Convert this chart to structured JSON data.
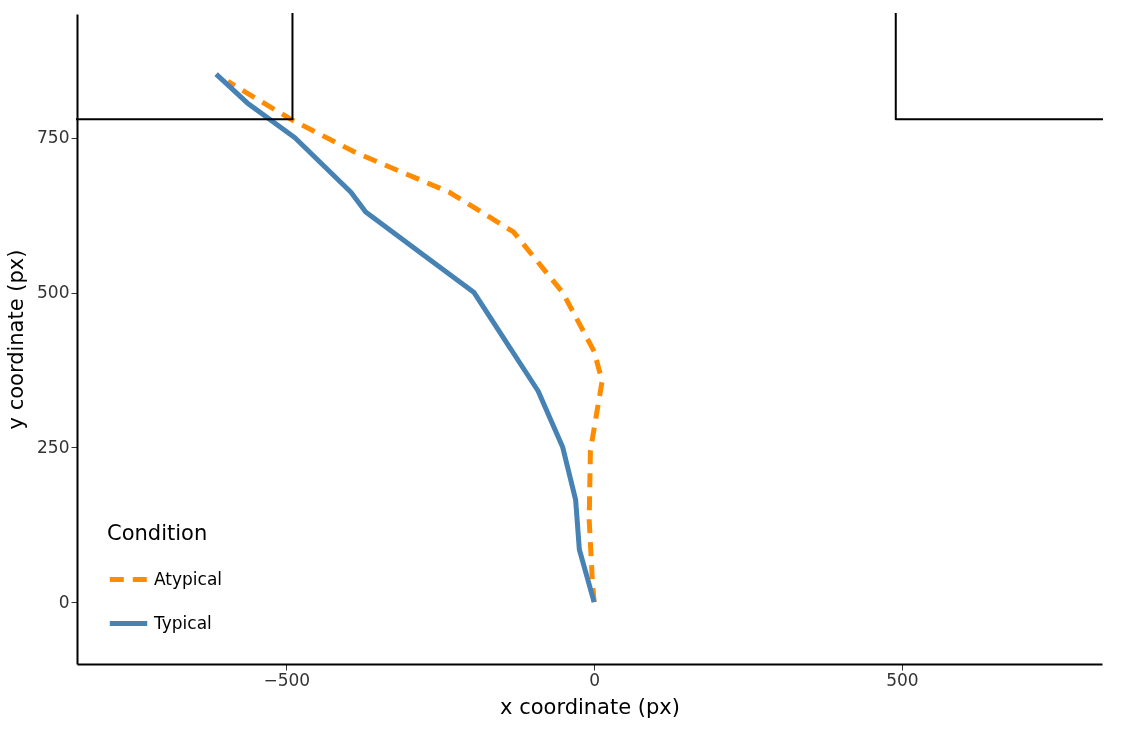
{
  "chart_data": {
    "type": "line",
    "xlabel": "x coordinate (px)",
    "ylabel": "y coordinate (px)",
    "legend_title": "Condition",
    "xlim": [
      -840,
      825
    ],
    "xticks": [
      -500,
      0,
      500
    ],
    "ylim": [
      -100,
      950
    ],
    "yticks": [
      0,
      250,
      500,
      750
    ],
    "grid": false,
    "legend": "bottom left",
    "marker": "none",
    "series": [
      {
        "name": "Atypical",
        "color": "#ff8c00",
        "line_style": "dashed",
        "x": [
          0,
          -3,
          -8,
          -6,
          13,
          0,
          -51,
          -131,
          -235,
          -387,
          -491,
          -595
        ],
        "values": [
          0,
          37,
          133,
          245,
          357,
          405,
          500,
          598,
          662,
          726,
          779,
          841
        ]
      },
      {
        "name": "Typical",
        "color": "#4682b4",
        "line_style": "solid",
        "x": [
          0,
          -24,
          -30,
          -51,
          -91,
          -195,
          -371,
          -395,
          -486,
          -563,
          -614
        ],
        "values": [
          0,
          85,
          165,
          250,
          341,
          500,
          630,
          662,
          750,
          806,
          853
        ]
      },
      {
        "type": "line",
        "color": "#000000",
        "line_style": "solid",
        "x": [
          -840,
          -490,
          -490
        ],
        "values": [
          780,
          780,
          950
        ]
      },
      {
        "type": "line",
        "color": "#000000",
        "line_style": "solid",
        "x": [
          490,
          490,
          825
        ],
        "values": [
          950,
          780,
          780
        ]
      }
    ]
  }
}
